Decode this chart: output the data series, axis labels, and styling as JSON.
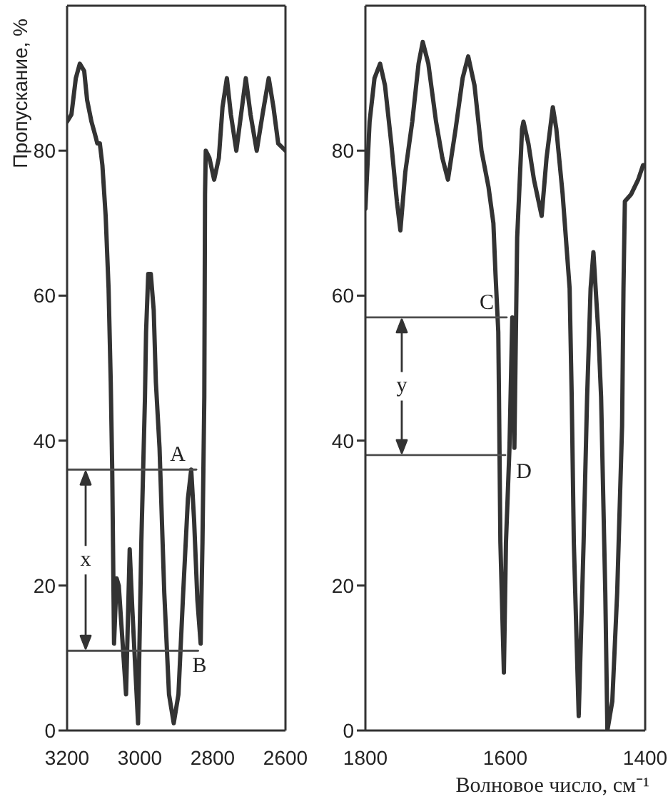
{
  "chart_data": [
    {
      "type": "line",
      "ylabel": "Пропускание, %",
      "xlim": [
        3200,
        2600
      ],
      "xticks": [
        3200,
        3000,
        2800,
        2600
      ],
      "ylim": [
        0,
        100
      ],
      "yticks": [
        0,
        20,
        40,
        60,
        80
      ],
      "series": [
        {
          "color": "#333333",
          "x": [
            3200,
            3188,
            3176,
            3165,
            3153,
            3145,
            3133,
            3122,
            3117,
            3110,
            3103,
            3094,
            3086,
            3080,
            3076,
            3071,
            3064,
            3058,
            3038,
            3028,
            3021,
            3005,
            2996,
            2992,
            2986,
            2983,
            2977,
            2970,
            2962,
            2956,
            2946,
            2933,
            2920,
            2907,
            2894,
            2881,
            2868,
            2859,
            2851,
            2842,
            2833,
            2828,
            2823,
            2821,
            2819,
            2809,
            2796,
            2783,
            2773,
            2761,
            2750,
            2735,
            2722,
            2709,
            2696,
            2679,
            2663,
            2646,
            2633,
            2620,
            2600
          ],
          "values": [
            84,
            85,
            90,
            92,
            91,
            87,
            84,
            82,
            81,
            81,
            78,
            71,
            61,
            48,
            36,
            12,
            21,
            20,
            5,
            25,
            17,
            1,
            26,
            34,
            46,
            55,
            63,
            63,
            58,
            48,
            39,
            19,
            5,
            1,
            5,
            19,
            32,
            36,
            29,
            18,
            12,
            26,
            46,
            74,
            80,
            79,
            76,
            79,
            86,
            90,
            85,
            80,
            85,
            90,
            85,
            80,
            85,
            90,
            86,
            81,
            80
          ]
        },
        {
          "color": "#4d4d4d",
          "x": [
            3200,
            2845
          ],
          "values": [
            36,
            36
          ]
        },
        {
          "color": "#4d4d4d",
          "x": [
            3200,
            2840
          ],
          "values": [
            11,
            11
          ]
        }
      ],
      "annotations": [
        "A",
        "B",
        "x"
      ]
    },
    {
      "type": "line",
      "xlabel": "Волновое число, см⁻¹",
      "xlim": [
        1800,
        1400
      ],
      "xticks": [
        1800,
        1600,
        1400
      ],
      "ylim": [
        0,
        100
      ],
      "yticks": [
        0,
        20,
        40,
        60,
        80
      ],
      "series": [
        {
          "color": "#333333",
          "x": [
            1800,
            1794,
            1787,
            1779,
            1772,
            1763,
            1755,
            1750,
            1743,
            1733,
            1724,
            1718,
            1710,
            1699,
            1690,
            1682,
            1671,
            1661,
            1653,
            1644,
            1634,
            1624,
            1617,
            1614,
            1610,
            1609,
            1607,
            1602,
            1599,
            1594,
            1590,
            1587,
            1583,
            1576,
            1574,
            1567,
            1559,
            1548,
            1541,
            1532,
            1527,
            1518,
            1508,
            1505,
            1502,
            1495,
            1488,
            1483,
            1478,
            1474,
            1467,
            1463,
            1457,
            1454,
            1447,
            1440,
            1433,
            1431,
            1429,
            1420,
            1410,
            1403,
            1400
          ],
          "values": [
            72,
            84,
            90,
            92,
            89,
            81,
            73,
            69,
            77,
            84,
            92,
            95,
            92,
            84,
            79,
            76,
            83,
            90,
            93,
            89,
            80,
            75,
            70,
            63,
            55,
            46,
            26,
            8,
            26,
            39,
            57,
            39,
            68,
            83,
            84,
            81,
            76,
            71,
            79,
            86,
            83,
            74,
            61,
            46,
            26,
            2,
            26,
            46,
            61,
            66,
            55,
            46,
            19,
            0,
            4,
            19,
            42,
            61,
            73,
            74,
            76,
            78,
            78
          ]
        },
        {
          "color": "#4d4d4d",
          "x": [
            1800,
            1598
          ],
          "values": [
            57,
            57
          ]
        },
        {
          "color": "#4d4d4d",
          "x": [
            1800,
            1600
          ],
          "values": [
            38,
            38
          ]
        }
      ],
      "annotations": [
        "C",
        "D",
        "y"
      ]
    }
  ]
}
